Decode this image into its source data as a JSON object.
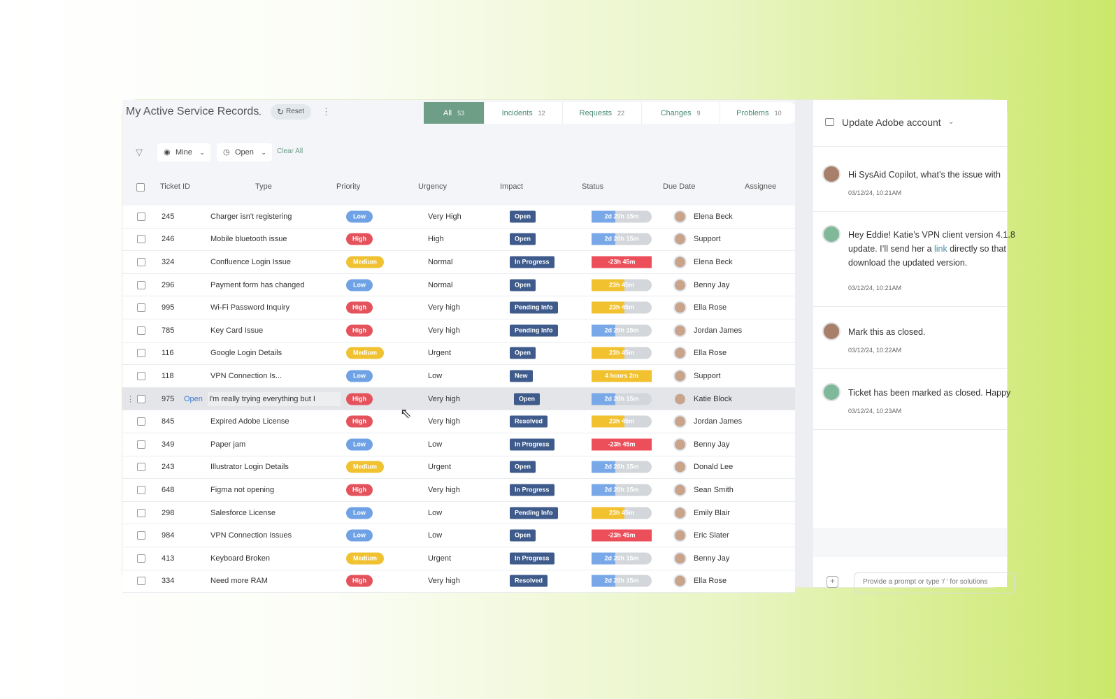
{
  "header": {
    "title": "My Active Service Records",
    "reset": "Reset"
  },
  "tabs": [
    {
      "label": "All",
      "count": 53
    },
    {
      "label": "Incidents",
      "count": 12
    },
    {
      "label": "Requests",
      "count": 22
    },
    {
      "label": "Changes",
      "count": 9
    },
    {
      "label": "Problems",
      "count": 10
    }
  ],
  "filters": {
    "mine": "Mine",
    "open": "Open",
    "clear": "Clear All"
  },
  "table": {
    "columns": [
      "Ticket ID",
      "Type",
      "Priority",
      "Urgency",
      "Impact",
      "Status",
      "Due Date",
      "Assignee"
    ],
    "rows": [
      {
        "id": 245,
        "type": "Charger isn't registering",
        "priority": "Low",
        "urgency": "Very High",
        "impact": "Open",
        "due": "2d 20h 15m",
        "assignee": "Elena Beck"
      },
      {
        "id": 246,
        "type": "Mobile bluetooth issue",
        "priority": "High",
        "urgency": "High",
        "impact": "Open",
        "due": "2d 20h 15m",
        "assignee": "Support"
      },
      {
        "id": 324,
        "type": "Confluence Login Issue",
        "priority": "Medium",
        "urgency": "Normal",
        "impact": "In Progress",
        "due": "-23h 45m",
        "assignee": "Elena Beck"
      },
      {
        "id": 296,
        "type": "Payment form has changed",
        "priority": "Low",
        "urgency": "Normal",
        "impact": "Open",
        "due": "23h 45m",
        "assignee": "Benny Jay"
      },
      {
        "id": 995,
        "type": "Wi-Fi Password Inquiry",
        "priority": "High",
        "urgency": "Very high",
        "impact": "Pending Info",
        "due": "23h 45m",
        "assignee": "Ella Rose"
      },
      {
        "id": 785,
        "type": "Key Card Issue",
        "priority": "High",
        "urgency": "Very high",
        "impact": "Pending Info",
        "due": "2d 20h 15m",
        "assignee": "Jordan James"
      },
      {
        "id": 116,
        "type": "Google Login Details",
        "priority": "Medium",
        "urgency": "Urgent",
        "impact": "Open",
        "due": "23h 45m",
        "assignee": "Ella Rose"
      },
      {
        "id": 118,
        "type": "VPN Connection Is...",
        "priority": "Low",
        "urgency": "Low",
        "impact": "New",
        "due": "4 hours 2m",
        "assignee": "Support"
      },
      {
        "id": 975,
        "action": "Open",
        "type": "I'm really trying everything but I",
        "priority": "High",
        "urgency": "Very high",
        "impact": "Open",
        "due": "2d 20h 15m",
        "assignee": "Katie Block"
      },
      {
        "id": 845,
        "type": "Expired Adobe License",
        "priority": "High",
        "urgency": "Very high",
        "impact": "Resolved",
        "due": "23h 45m",
        "assignee": "Jordan James"
      },
      {
        "id": 349,
        "type": "Paper jam",
        "priority": "Low",
        "urgency": "Low",
        "impact": "In Progress",
        "due": "-23h 45m",
        "assignee": "Benny Jay"
      },
      {
        "id": 243,
        "type": "Illustrator Login Details",
        "priority": "Medium",
        "urgency": "Urgent",
        "impact": "Open",
        "due": "2d 20h 15m",
        "assignee": "Donald Lee"
      },
      {
        "id": 648,
        "type": "Figma not opening",
        "priority": "High",
        "urgency": "Very high",
        "impact": "In Progress",
        "due": "2d 20h 15m",
        "assignee": "Sean Smith"
      },
      {
        "id": 298,
        "type": "Salesforce License",
        "priority": "Low",
        "urgency": "Low",
        "impact": "Pending Info",
        "due": "23h 45m",
        "assignee": "Emily Blair"
      },
      {
        "id": 984,
        "type": "VPN Connection Issues",
        "priority": "Low",
        "urgency": "Low",
        "impact": "Open",
        "due": "-23h 45m",
        "assignee": "Eric Slater"
      },
      {
        "id": 413,
        "type": "Keyboard Broken",
        "priority": "Medium",
        "urgency": "Urgent",
        "impact": "In Progress",
        "due": "2d 20h 15m",
        "assignee": "Benny Jay"
      },
      {
        "id": 334,
        "type": "Need more RAM",
        "priority": "High",
        "urgency": "Very high",
        "impact": "Resolved",
        "due": "2d 20h 15m",
        "assignee": "Ella Rose"
      }
    ]
  },
  "chat": {
    "title": "Update Adobe account",
    "messages": [
      {
        "lines": [
          "Hi SysAid Copilot, what’s the issue with"
        ],
        "time": "03/12/24, 10:21AM"
      },
      {
        "lines": [
          "Hey Eddie! Katie’s VPN client version 4.1.8"
        ],
        "before": "update. I’ll send her a ",
        "link": "link",
        "after": " directly so that",
        "last": "download the updated version.",
        "time": "03/12/24, 10:21AM"
      },
      {
        "lines": [
          "Mark this as closed."
        ],
        "time": "03/12/24, 10:22AM"
      },
      {
        "lines": [
          "Ticket has been marked as closed. Happy"
        ],
        "time": "03/12/24, 10:23AM"
      }
    ],
    "input_placeholder": "Provide a prompt or type '/ ' for solutions"
  }
}
